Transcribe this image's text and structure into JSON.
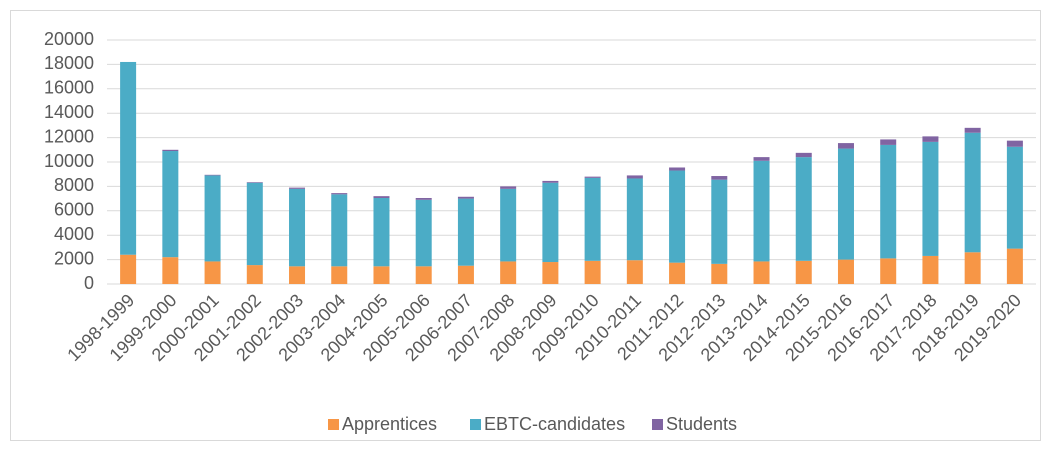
{
  "chart_data": {
    "type": "stacked_bar",
    "categories": [
      "1998-1999",
      "1999-2000",
      "2000-2001",
      "2001-2002",
      "2002-2003",
      "2003-2004",
      "2004-2005",
      "2005-2006",
      "2006-2007",
      "2007-2008",
      "2008-2009",
      "2009-2010",
      "2010-2011",
      "2011-2012",
      "2012-2013",
      "2013-2014",
      "2014-2015",
      "2015-2016",
      "2016-2017",
      "2017-2018",
      "2018-2019",
      "2019-2020"
    ],
    "series": [
      {
        "name": "Apprentices",
        "color": "#f79646",
        "values": [
          2400,
          2200,
          1850,
          1550,
          1450,
          1450,
          1450,
          1450,
          1500,
          1850,
          1800,
          1900,
          1950,
          1750,
          1650,
          1850,
          1900,
          2000,
          2100,
          2300,
          2600,
          2900
        ]
      },
      {
        "name": "EBTC-candidates",
        "color": "#4bacc6",
        "values": [
          15800,
          8700,
          7050,
          6750,
          6350,
          5900,
          5600,
          5450,
          5500,
          5950,
          6500,
          6800,
          6700,
          7550,
          6900,
          8250,
          8500,
          9100,
          9300,
          9350,
          9800,
          8350
        ]
      },
      {
        "name": "Students",
        "color": "#8064a2",
        "values": [
          0,
          100,
          50,
          50,
          100,
          100,
          150,
          150,
          150,
          200,
          150,
          100,
          250,
          250,
          300,
          300,
          350,
          450,
          450,
          450,
          400,
          500
        ]
      }
    ],
    "ylim": [
      0,
      20000
    ],
    "yticks": [
      0,
      2000,
      4000,
      6000,
      8000,
      10000,
      12000,
      14000,
      16000,
      18000,
      20000
    ],
    "grid": true,
    "legend": "bottom"
  }
}
